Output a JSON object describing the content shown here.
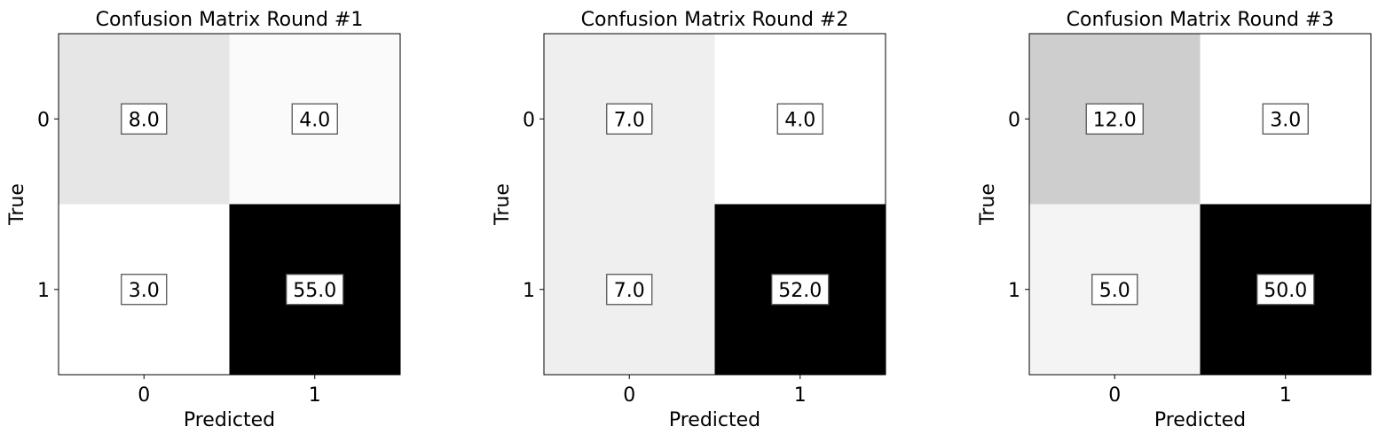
{
  "chart_data": [
    {
      "type": "heatmap",
      "title": "Confusion Matrix Round #1",
      "xlabel": "Predicted",
      "ylabel": "True",
      "x_categories": [
        "0",
        "1"
      ],
      "y_categories": [
        "0",
        "1"
      ],
      "values": [
        [
          8.0,
          4.0
        ],
        [
          3.0,
          55.0
        ]
      ],
      "value_labels": [
        [
          "8.0",
          "4.0"
        ],
        [
          "3.0",
          "55.0"
        ]
      ],
      "colormap": "gray_r",
      "grid": false
    },
    {
      "type": "heatmap",
      "title": "Confusion Matrix Round #2",
      "xlabel": "Predicted",
      "ylabel": "True",
      "x_categories": [
        "0",
        "1"
      ],
      "y_categories": [
        "0",
        "1"
      ],
      "values": [
        [
          7.0,
          4.0
        ],
        [
          7.0,
          52.0
        ]
      ],
      "value_labels": [
        [
          "7.0",
          "4.0"
        ],
        [
          "7.0",
          "52.0"
        ]
      ],
      "colormap": "gray_r",
      "grid": false
    },
    {
      "type": "heatmap",
      "title": "Confusion Matrix Round #3",
      "xlabel": "Predicted",
      "ylabel": "True",
      "x_categories": [
        "0",
        "1"
      ],
      "y_categories": [
        "0",
        "1"
      ],
      "values": [
        [
          12.0,
          3.0
        ],
        [
          5.0,
          50.0
        ]
      ],
      "value_labels": [
        [
          "12.0",
          "3.0"
        ],
        [
          "5.0",
          "50.0"
        ]
      ],
      "colormap": "gray_r",
      "grid": false
    }
  ]
}
